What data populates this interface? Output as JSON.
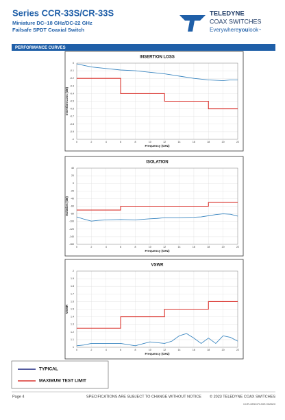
{
  "header": {
    "title": "Series CCR-33S/CR-33S",
    "subtitle1": "Miniature DC–18 GHz/DC-22 GHz",
    "subtitle2": "Failsafe SPDT Coaxial Switch",
    "logo_brand": "TELEDYNE",
    "logo_division": "COAX SWITCHES",
    "tagline_a": "Everywhere",
    "tagline_b": "you",
    "tagline_c": "look",
    "tagline_tm": "™"
  },
  "section": "PERFORMANCE CURVES",
  "footer": {
    "page": "Page 4",
    "notice": "SPECIFICATIONS ARE SUBJECT TO CHANGE WITHOUT NOTICE",
    "copyright": "© 2023 TELEDYNE COAX SWITCHES",
    "doc_id": "CCR-33S/CR-33S 032623"
  },
  "chart_data": [
    {
      "type": "line",
      "title": "INSERTION LOSS",
      "x_label": "Frequency (GHz)",
      "y_label": "Insertion Loss (dB)",
      "xlim": [
        0,
        22
      ],
      "xticks": [
        0,
        2,
        4,
        6,
        8,
        10,
        12,
        14,
        16,
        18,
        20,
        22
      ],
      "ylim": [
        -1,
        0
      ],
      "yticks": [
        0,
        -0.1,
        -0.2,
        -0.3,
        -0.4,
        -0.5,
        -0.6,
        -0.7,
        -0.8,
        -0.9,
        -1
      ],
      "grid": true,
      "series": [
        {
          "name": "TYPICAL",
          "color": "#3a86c0",
          "x": [
            0,
            1,
            2,
            4,
            6,
            8,
            10,
            12,
            14,
            16,
            18,
            20,
            21,
            22
          ],
          "values": [
            -0.01,
            -0.03,
            -0.05,
            -0.07,
            -0.09,
            -0.1,
            -0.12,
            -0.14,
            -0.17,
            -0.2,
            -0.22,
            -0.23,
            -0.22,
            -0.22
          ]
        },
        {
          "name": "MAXIMUM TEST LIMIT",
          "color": "#d9312b",
          "x": [
            0,
            6,
            6,
            12,
            12,
            18,
            18,
            22
          ],
          "values": [
            -0.2,
            -0.2,
            -0.4,
            -0.4,
            -0.5,
            -0.5,
            -0.6,
            -0.6
          ]
        }
      ]
    },
    {
      "type": "line",
      "title": "ISOLATION",
      "x_label": "Frequency (GHz)",
      "y_label": "Isolation (dB)",
      "xlim": [
        0,
        22
      ],
      "xticks": [
        0,
        2,
        4,
        6,
        8,
        10,
        12,
        14,
        16,
        18,
        20,
        22
      ],
      "ylim": [
        -160,
        40
      ],
      "yticks": [
        40,
        20,
        0,
        -20,
        -40,
        -60,
        -80,
        -100,
        -120,
        -140,
        -160
      ],
      "grid": true,
      "series": [
        {
          "color": "#3a86c0",
          "x": [
            0,
            1,
            2,
            3,
            4,
            6,
            8,
            10,
            11,
            12,
            14,
            16,
            17,
            18,
            19,
            20,
            21,
            22
          ],
          "values": [
            -88,
            -94,
            -99,
            -97,
            -96,
            -95,
            -96,
            -93,
            -92,
            -90,
            -90,
            -89,
            -88,
            -85,
            -82,
            -80,
            -81,
            -86
          ]
        },
        {
          "color": "#d9312b",
          "x": [
            0,
            6,
            6,
            18,
            18,
            22
          ],
          "values": [
            -70,
            -70,
            -60,
            -60,
            -50,
            -50
          ]
        }
      ]
    },
    {
      "type": "line",
      "title": "VSWR",
      "x_label": "Frequency (GHz)",
      "y_label": "VSWR",
      "xlim": [
        0,
        22
      ],
      "xticks": [
        0,
        2,
        4,
        6,
        8,
        10,
        12,
        14,
        16,
        18,
        20,
        22
      ],
      "ylim": [
        1,
        2
      ],
      "yticks": [
        2,
        1.9,
        1.8,
        1.7,
        1.6,
        1.5,
        1.4,
        1.3,
        1.2,
        1.1,
        1
      ],
      "grid": true,
      "series": [
        {
          "color": "#3a86c0",
          "x": [
            0,
            1,
            2,
            4,
            6,
            8,
            10,
            12,
            13,
            14,
            15,
            16,
            17,
            18,
            19,
            20,
            21,
            22
          ],
          "values": [
            1.02,
            1.03,
            1.05,
            1.05,
            1.05,
            1.02,
            1.07,
            1.05,
            1.08,
            1.15,
            1.18,
            1.12,
            1.05,
            1.12,
            1.05,
            1.15,
            1.13,
            1.08
          ]
        },
        {
          "color": "#d9312b",
          "x": [
            0,
            6,
            6,
            12,
            12,
            18,
            18,
            22
          ],
          "values": [
            1.25,
            1.25,
            1.4,
            1.4,
            1.5,
            1.5,
            1.6,
            1.6
          ]
        }
      ]
    }
  ]
}
